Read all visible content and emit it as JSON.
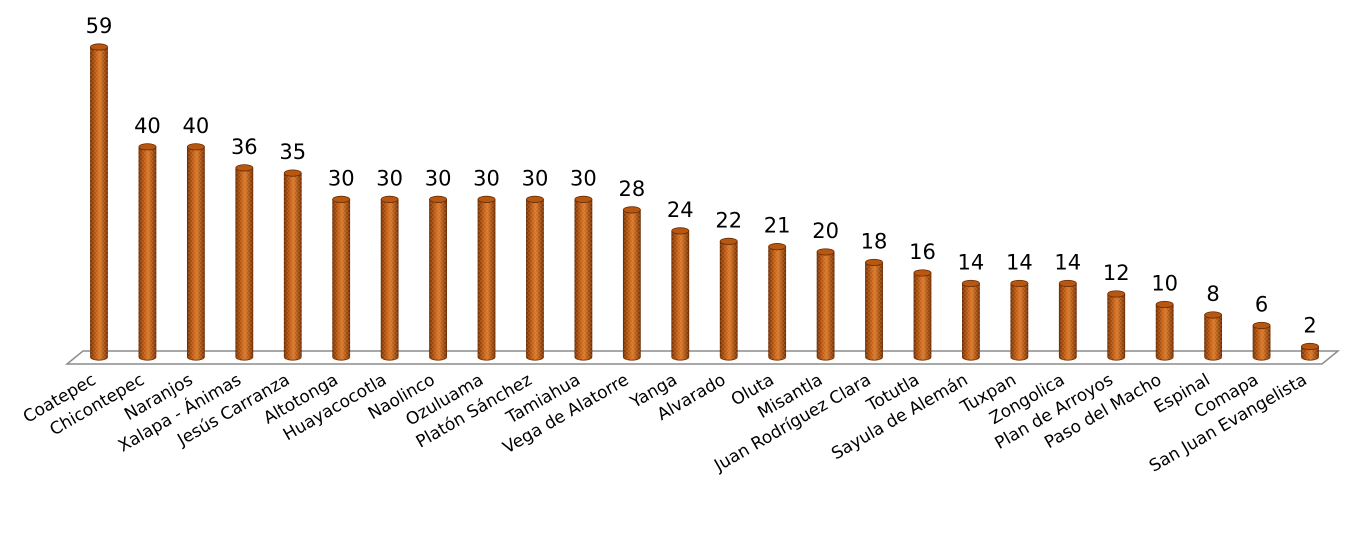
{
  "chart_data": {
    "type": "bar",
    "style": "3d-cylinder",
    "categories": [
      "Coatepec",
      "Chicontepec",
      "Naranjos",
      "Xalapa - Ánimas",
      "Jesús Carranza",
      "Altotonga",
      "Huayacocotla",
      "Naolinco",
      "Ozuluama",
      "Platón Sánchez",
      "Tamiahua",
      "Vega de Alatorre",
      "Yanga",
      "Alvarado",
      "Oluta",
      "Misantla",
      "Juan Rodríguez Clara",
      "Totutla",
      "Sayula de Alemán",
      "Tuxpan",
      "Zongolica",
      "Plan de Arroyos",
      "Paso del Macho",
      "Espinal",
      "Comapa",
      "San Juan Evangelista"
    ],
    "values": [
      59,
      40,
      40,
      36,
      35,
      30,
      30,
      30,
      30,
      30,
      30,
      28,
      24,
      22,
      21,
      20,
      18,
      16,
      14,
      14,
      14,
      12,
      10,
      8,
      6,
      2
    ],
    "title": "",
    "xlabel": "",
    "ylabel": "",
    "ylim": [
      0,
      59
    ],
    "grid": false,
    "legend": "none",
    "colors": {
      "bar_fill": "#b8570f",
      "bar_dark": "#7a3305",
      "bar_light": "#e08a3c",
      "floor_stroke": "#8c8c8c"
    }
  }
}
